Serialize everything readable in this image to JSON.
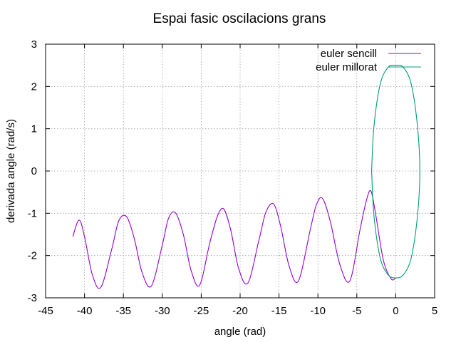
{
  "chart_data": {
    "type": "line",
    "title": "Espai fasic oscilacions grans",
    "xlabel": "angle (rad)",
    "ylabel": "derivada angle (rad/s)",
    "xlim": [
      -45,
      5
    ],
    "ylim": [
      -3,
      3
    ],
    "xticks": [
      "-45",
      "-40",
      "-35",
      "-30",
      "-25",
      "-20",
      "-15",
      "-10",
      "-5",
      "0",
      "5"
    ],
    "yticks": [
      "-3",
      "-2",
      "-1",
      "0",
      "1",
      "2",
      "3"
    ],
    "grid": true,
    "legend_position": "top-right",
    "series": [
      {
        "name": "euler sencill",
        "color": "#9400d3",
        "x": [
          -41.5,
          -40.7,
          -40.0,
          -39.0,
          -37.9,
          -36.5,
          -35.6,
          -34.6,
          -33.6,
          -32.6,
          -31.4,
          -30.0,
          -29.2,
          -28.3,
          -27.3,
          -26.3,
          -25.2,
          -23.9,
          -22.9,
          -22.1,
          -21.2,
          -20.2,
          -19.0,
          -17.6,
          -16.7,
          -15.7,
          -14.8,
          -13.7,
          -12.5,
          -11.0,
          -10.2,
          -9.4,
          -8.4,
          -7.2,
          -5.9,
          -4.6,
          -3.8,
          -3.2,
          -2.6,
          -1.6,
          -0.6,
          0.0
        ],
        "y": [
          -1.55,
          -1.16,
          -1.55,
          -2.45,
          -2.75,
          -1.85,
          -1.18,
          -1.08,
          -1.6,
          -2.4,
          -2.72,
          -1.75,
          -1.12,
          -0.99,
          -1.5,
          -2.35,
          -2.7,
          -1.7,
          -1.06,
          -0.9,
          -1.4,
          -2.3,
          -2.65,
          -1.65,
          -0.98,
          -0.78,
          -1.3,
          -2.25,
          -2.6,
          -1.4,
          -0.8,
          -0.65,
          -1.2,
          -2.2,
          -2.6,
          -1.4,
          -0.72,
          -0.47,
          -1.0,
          -2.1,
          -2.55,
          -2.53
        ]
      },
      {
        "name": "euler millorat",
        "color": "#009e73",
        "x": [
          -3.1,
          -2.8,
          -2.0,
          -1.0,
          0.0,
          1.0,
          2.0,
          2.8,
          3.1,
          2.8,
          2.0,
          1.0,
          0.0,
          -1.0,
          -2.0,
          -2.8,
          -3.1
        ],
        "y": [
          0.0,
          -1.05,
          -2.05,
          -2.45,
          -2.53,
          -2.45,
          -2.05,
          -1.05,
          0.0,
          1.05,
          2.05,
          2.45,
          2.5,
          2.45,
          2.05,
          1.05,
          0.0
        ]
      }
    ]
  }
}
